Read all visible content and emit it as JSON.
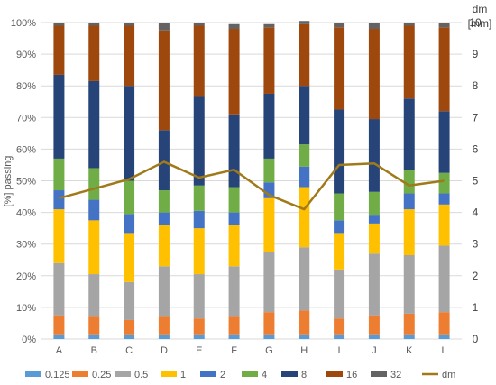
{
  "chart_data": {
    "type": "bar",
    "stacked": true,
    "categories": [
      "A",
      "B",
      "C",
      "D",
      "E",
      "F",
      "G",
      "H",
      "I",
      "J",
      "K",
      "L"
    ],
    "ylabel": "[%] passing",
    "ylim": [
      0,
      100
    ],
    "y_ticks": [
      "0%",
      "10%",
      "20%",
      "30%",
      "40%",
      "50%",
      "60%",
      "70%",
      "80%",
      "90%",
      "100%"
    ],
    "y2label": [
      "dm",
      "[mm]"
    ],
    "y2lim": [
      0,
      10
    ],
    "y2_ticks": [
      "0",
      "1",
      "2",
      "3",
      "4",
      "5",
      "6",
      "7",
      "8",
      "9",
      "10"
    ],
    "grid": true,
    "legend_position": "bottom",
    "series": [
      {
        "name": "0.125",
        "color": "#5b9bd5",
        "values": [
          1.5,
          1.5,
          1.5,
          1.5,
          1.5,
          1.5,
          1.5,
          1.5,
          1.5,
          1.5,
          1.5,
          1.5
        ]
      },
      {
        "name": "0.25",
        "color": "#ed7d31",
        "values": [
          6,
          5.5,
          4.5,
          5.5,
          5,
          5.5,
          7,
          7.5,
          5,
          6,
          6.5,
          7
        ]
      },
      {
        "name": "0.5",
        "color": "#a5a5a5",
        "values": [
          16.5,
          13.5,
          12,
          16,
          14,
          16,
          19,
          20,
          15.5,
          19.5,
          18.5,
          21
        ]
      },
      {
        "name": "1",
        "color": "#ffc000",
        "values": [
          17,
          17,
          15.5,
          13,
          14.5,
          13,
          17,
          19,
          11.5,
          9.5,
          14.5,
          13
        ]
      },
      {
        "name": "2",
        "color": "#4472c4",
        "values": [
          6,
          6.5,
          6,
          4,
          5.5,
          4,
          5,
          6.5,
          4,
          2.5,
          5,
          3.5
        ]
      },
      {
        "name": "4",
        "color": "#70ad47",
        "values": [
          10,
          10,
          10.5,
          7,
          8,
          8,
          7.5,
          7,
          8.5,
          7.5,
          7.5,
          6.5
        ]
      },
      {
        "name": "8",
        "color": "#264478",
        "values": [
          26.5,
          27.5,
          30,
          19,
          28,
          23,
          20.5,
          18.5,
          26.5,
          23,
          22.5,
          19.5
        ]
      },
      {
        "name": "16",
        "color": "#9e480e",
        "values": [
          15.5,
          17.5,
          19,
          31.5,
          22.5,
          27,
          21,
          19.5,
          26,
          28.5,
          23,
          26.5
        ]
      },
      {
        "name": "32",
        "color": "#636363",
        "values": [
          1,
          1,
          1,
          2.5,
          1,
          1.5,
          1,
          1,
          1.5,
          2,
          1,
          1.5
        ]
      }
    ],
    "line_series": {
      "name": "dm",
      "color": "#a07a1a",
      "axis": "secondary",
      "values": [
        4.45,
        4.75,
        5.05,
        5.6,
        5.1,
        5.35,
        4.55,
        4.1,
        5.5,
        5.55,
        4.85,
        5.0
      ]
    }
  }
}
